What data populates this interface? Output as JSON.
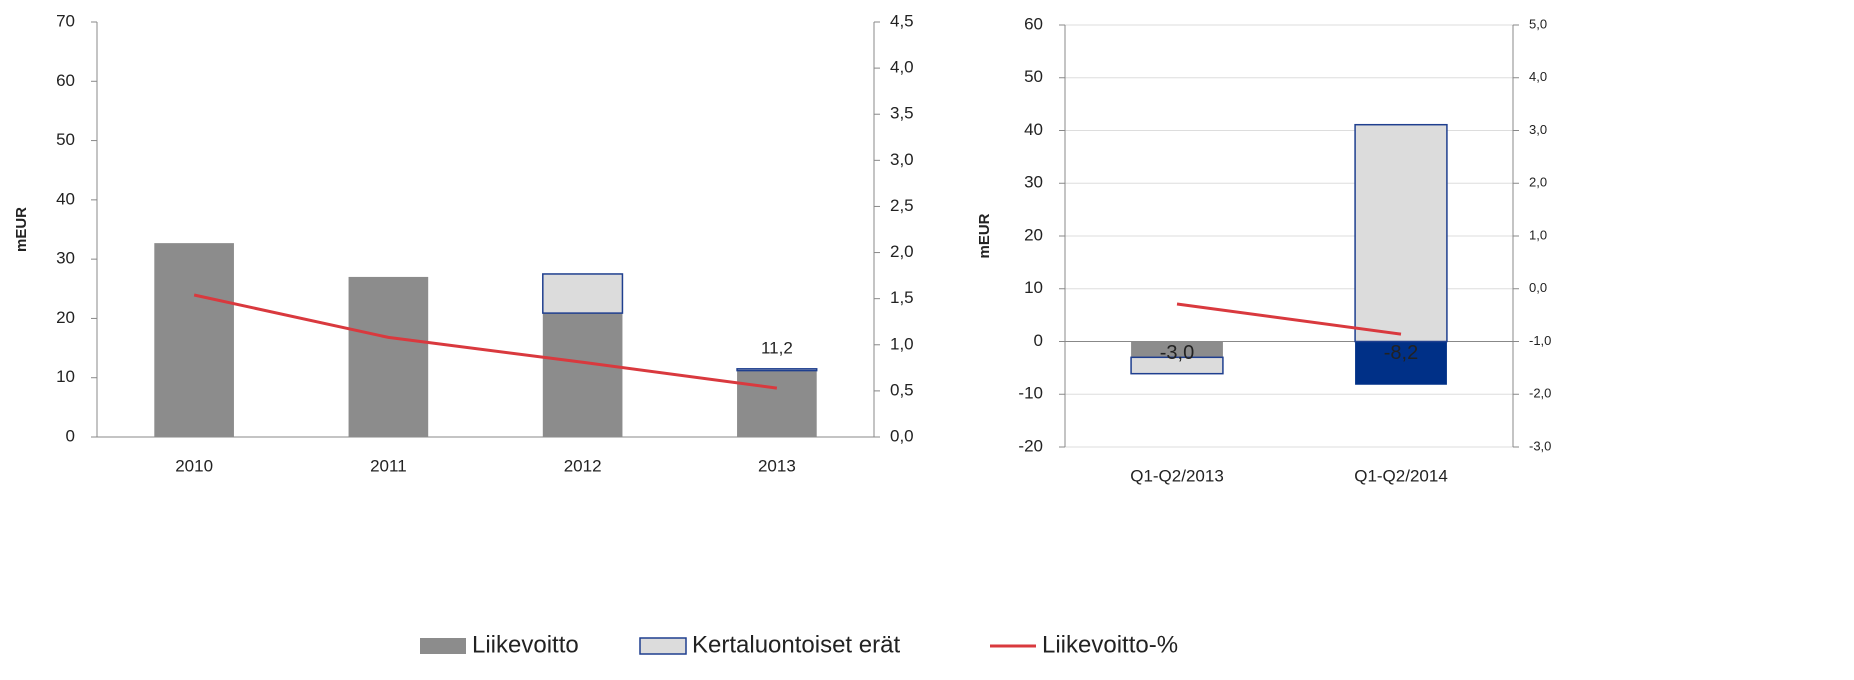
{
  "chart_data": [
    {
      "type": "bar",
      "ylabel": "mEUR",
      "categories": [
        "2010",
        "2011",
        "2012",
        "2013"
      ],
      "ylim": [
        0,
        70
      ],
      "yticks": [
        0,
        10,
        20,
        30,
        40,
        50,
        60,
        70
      ],
      "y2lim": [
        0,
        4.5
      ],
      "y2ticks": [
        {
          "value": 0,
          "label": "0,0"
        },
        {
          "value": 0.5,
          "label": "0,5"
        },
        {
          "value": 1,
          "label": "1,0"
        },
        {
          "value": 1.5,
          "label": "1,5"
        },
        {
          "value": 2,
          "label": "2,0"
        },
        {
          "value": 2.5,
          "label": "2,5"
        },
        {
          "value": 3,
          "label": "3,0"
        },
        {
          "value": 3.5,
          "label": "3,5"
        },
        {
          "value": 4,
          "label": "4,0"
        },
        {
          "value": 4.5,
          "label": "4,5"
        }
      ],
      "grid": false,
      "series": [
        {
          "name": "Liikevoitto",
          "color": "#8c8c8c",
          "values": [
            32.7,
            27.0,
            20.9,
            11.2
          ],
          "value_labels": [
            null,
            null,
            null,
            "11,2"
          ]
        },
        {
          "name": "Kertaluontoiset erät",
          "color": "#dcdcdc",
          "values": [
            0,
            0,
            6.6,
            0.3
          ]
        },
        {
          "name": "Liikevoitto-%",
          "color": "#d9393e",
          "axis": "y2",
          "values": [
            1.54,
            1.08,
            0.81,
            0.53
          ]
        }
      ]
    },
    {
      "type": "bar",
      "ylabel": "mEUR",
      "categories": [
        "Q1-Q2/2013",
        "Q1-Q2/2014"
      ],
      "ylim": [
        -20,
        60
      ],
      "yticks": [
        -20,
        -10,
        0,
        10,
        20,
        30,
        40,
        50,
        60
      ],
      "y2lim": [
        -3,
        5
      ],
      "y2ticks": [
        {
          "value": -3,
          "label": "-3,0"
        },
        {
          "value": -2,
          "label": "-2,0"
        },
        {
          "value": -1,
          "label": "-1,0"
        },
        {
          "value": 0,
          "label": "0,0"
        },
        {
          "value": 1,
          "label": "1,0"
        },
        {
          "value": 2,
          "label": "2,0"
        },
        {
          "value": 3,
          "label": "3,0"
        },
        {
          "value": 4,
          "label": "4,0"
        },
        {
          "value": 5,
          "label": "5,0"
        }
      ],
      "grid": true,
      "series": [
        {
          "name": "Liikevoitto",
          "color": "#8c8c8c",
          "colors": [
            "#8c8c8c",
            "#003087"
          ],
          "values": [
            -3.0,
            -8.2
          ],
          "value_labels": [
            "-3,0",
            "-8,2"
          ]
        },
        {
          "name": "Kertaluontoiset erät",
          "color": "#dcdcdc",
          "values": [
            -3.1,
            41.1
          ]
        },
        {
          "name": "Liikevoitto-%",
          "color": "#d9393e",
          "axis": "y2",
          "values": [
            -0.29,
            -0.86
          ]
        }
      ]
    }
  ]
}
